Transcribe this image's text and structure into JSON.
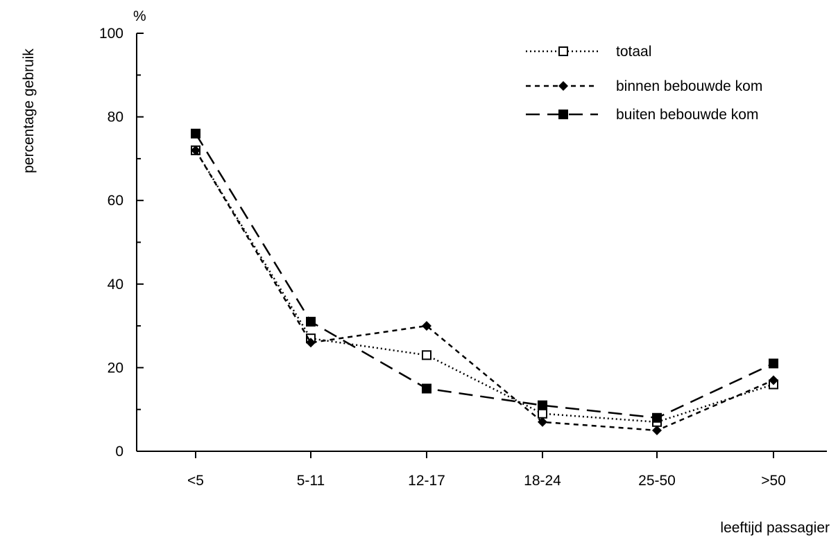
{
  "chart_data": {
    "type": "line",
    "unit_label": "%",
    "ylabel": "percentage gebruik",
    "xlabel": "leeftijd passagier",
    "categories": [
      "<5",
      "5-11",
      "12-17",
      "18-24",
      "25-50",
      ">50"
    ],
    "yticks": [
      "0",
      "20",
      "40",
      "60",
      "80",
      "100"
    ],
    "ylim": [
      0,
      100
    ],
    "grid": false,
    "legend_position": "top-right",
    "series": [
      {
        "name": "totaal",
        "values": [
          72,
          27,
          23,
          9,
          7,
          16
        ],
        "dash": "dotted",
        "marker": "open-square"
      },
      {
        "name": "binnen bebouwde kom",
        "values": [
          72,
          26,
          30,
          7,
          5,
          17
        ],
        "dash": "short-dash",
        "marker": "diamond"
      },
      {
        "name": "buiten bebouwde kom",
        "values": [
          76,
          31,
          15,
          11,
          8,
          21
        ],
        "dash": "long-dash",
        "marker": "filled-square"
      }
    ]
  }
}
